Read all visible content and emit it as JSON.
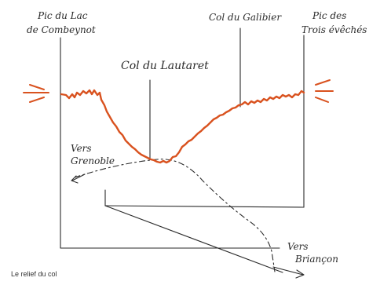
{
  "colors": {
    "ink": "#2a2a2a",
    "relief": "#d9521f",
    "background": "#ffffff"
  },
  "labels": {
    "pic_lac": [
      "Pic du Lac",
      "de Combeynot"
    ],
    "col_lautaret": "Col du Lautaret",
    "col_galibier": "Col du Galibier",
    "pic_trois": [
      "Pic des",
      "Trois évêchés"
    ],
    "vers_grenoble": [
      "Vers",
      "Grenoble"
    ],
    "vers_briancon": [
      "Vers",
      "Briançon"
    ]
  },
  "caption": "Le relief du col"
}
